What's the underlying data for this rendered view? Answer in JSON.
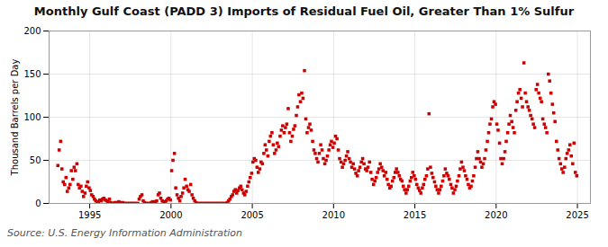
{
  "chart_data": {
    "type": "scatter",
    "title": "Monthly Gulf Coast (PADD 3) Imports of Residual Fuel Oil, Greater Than 1% Sulfur",
    "ylabel": "Thousand Barrels per Day",
    "source": "Source: U.S. Energy Information Administration",
    "color": "#cc0000",
    "marker": "square",
    "grid": true,
    "xlim": [
      1992.5,
      2025.8
    ],
    "ylim": [
      0,
      200
    ],
    "xticks": [
      1995,
      2000,
      2005,
      2010,
      2015,
      2020,
      2025
    ],
    "yticks": [
      0,
      50,
      100,
      150,
      200
    ],
    "x": [
      1993.04,
      1993.12,
      1993.21,
      1993.29,
      1993.37,
      1993.46,
      1993.54,
      1993.62,
      1993.71,
      1993.79,
      1993.87,
      1993.96,
      1994.04,
      1994.12,
      1994.21,
      1994.29,
      1994.37,
      1994.46,
      1994.54,
      1994.62,
      1994.71,
      1994.79,
      1994.87,
      1994.96,
      1995.04,
      1995.12,
      1995.21,
      1995.29,
      1995.37,
      1995.46,
      1995.54,
      1995.62,
      1995.71,
      1995.79,
      1995.87,
      1995.96,
      1996.04,
      1996.12,
      1996.21,
      1996.29,
      1996.37,
      1996.46,
      1996.54,
      1996.62,
      1996.71,
      1996.79,
      1996.87,
      1996.96,
      1997.04,
      1997.12,
      1997.21,
      1997.29,
      1997.37,
      1997.46,
      1997.54,
      1997.62,
      1997.71,
      1997.79,
      1997.87,
      1997.96,
      1998.04,
      1998.12,
      1998.21,
      1998.29,
      1998.37,
      1998.46,
      1998.54,
      1998.62,
      1998.71,
      1998.79,
      1998.87,
      1998.96,
      1999.04,
      1999.12,
      1999.21,
      1999.29,
      1999.37,
      1999.46,
      1999.54,
      1999.62,
      1999.71,
      1999.79,
      1999.87,
      1999.96,
      2000.04,
      2000.12,
      2000.21,
      2000.29,
      2000.37,
      2000.46,
      2000.54,
      2000.62,
      2000.71,
      2000.79,
      2000.87,
      2000.96,
      2001.04,
      2001.12,
      2001.21,
      2001.29,
      2001.37,
      2001.46,
      2001.54,
      2001.62,
      2001.71,
      2001.79,
      2001.87,
      2001.96,
      2002.04,
      2002.12,
      2002.21,
      2002.29,
      2002.37,
      2002.46,
      2002.54,
      2002.62,
      2002.71,
      2002.79,
      2002.87,
      2002.96,
      2003.04,
      2003.12,
      2003.21,
      2003.29,
      2003.37,
      2003.46,
      2003.54,
      2003.62,
      2003.71,
      2003.79,
      2003.87,
      2003.96,
      2004.04,
      2004.12,
      2004.21,
      2004.29,
      2004.37,
      2004.46,
      2004.54,
      2004.62,
      2004.71,
      2004.79,
      2004.87,
      2004.96,
      2005.04,
      2005.12,
      2005.21,
      2005.29,
      2005.37,
      2005.46,
      2005.54,
      2005.62,
      2005.71,
      2005.79,
      2005.87,
      2005.96,
      2006.04,
      2006.12,
      2006.21,
      2006.29,
      2006.37,
      2006.46,
      2006.54,
      2006.62,
      2006.71,
      2006.79,
      2006.87,
      2006.96,
      2007.04,
      2007.12,
      2007.21,
      2007.29,
      2007.37,
      2007.46,
      2007.54,
      2007.62,
      2007.71,
      2007.79,
      2007.87,
      2007.96,
      2008.04,
      2008.12,
      2008.21,
      2008.29,
      2008.37,
      2008.46,
      2008.54,
      2008.62,
      2008.71,
      2008.79,
      2008.87,
      2008.96,
      2009.04,
      2009.12,
      2009.21,
      2009.29,
      2009.37,
      2009.46,
      2009.54,
      2009.62,
      2009.71,
      2009.79,
      2009.87,
      2009.96,
      2010.04,
      2010.12,
      2010.21,
      2010.29,
      2010.37,
      2010.46,
      2010.54,
      2010.62,
      2010.71,
      2010.79,
      2010.87,
      2010.96,
      2011.04,
      2011.12,
      2011.21,
      2011.29,
      2011.37,
      2011.46,
      2011.54,
      2011.62,
      2011.71,
      2011.79,
      2011.87,
      2011.96,
      2012.04,
      2012.12,
      2012.21,
      2012.29,
      2012.37,
      2012.46,
      2012.54,
      2012.62,
      2012.71,
      2012.79,
      2012.87,
      2012.96,
      2013.04,
      2013.12,
      2013.21,
      2013.29,
      2013.37,
      2013.46,
      2013.54,
      2013.62,
      2013.71,
      2013.79,
      2013.87,
      2013.96,
      2014.04,
      2014.12,
      2014.21,
      2014.29,
      2014.37,
      2014.46,
      2014.54,
      2014.62,
      2014.71,
      2014.79,
      2014.87,
      2014.96,
      2015.04,
      2015.12,
      2015.21,
      2015.29,
      2015.37,
      2015.46,
      2015.54,
      2015.62,
      2015.71,
      2015.79,
      2015.87,
      2015.96,
      2016.04,
      2016.12,
      2016.21,
      2016.29,
      2016.37,
      2016.46,
      2016.54,
      2016.62,
      2016.71,
      2016.79,
      2016.87,
      2016.96,
      2017.04,
      2017.12,
      2017.21,
      2017.29,
      2017.37,
      2017.46,
      2017.54,
      2017.62,
      2017.71,
      2017.79,
      2017.87,
      2017.96,
      2018.04,
      2018.12,
      2018.21,
      2018.29,
      2018.37,
      2018.46,
      2018.54,
      2018.62,
      2018.71,
      2018.79,
      2018.87,
      2018.96,
      2019.04,
      2019.12,
      2019.21,
      2019.29,
      2019.37,
      2019.46,
      2019.54,
      2019.62,
      2019.71,
      2019.79,
      2019.87,
      2019.96,
      2020.04,
      2020.12,
      2020.21,
      2020.29,
      2020.37,
      2020.46,
      2020.54,
      2020.62,
      2020.71,
      2020.79,
      2020.87,
      2020.96,
      2021.04,
      2021.12,
      2021.21,
      2021.29,
      2021.37,
      2021.46,
      2021.54,
      2021.62,
      2021.71,
      2021.79,
      2021.87,
      2021.96,
      2022.04,
      2022.12,
      2022.21,
      2022.29,
      2022.37,
      2022.46,
      2022.54,
      2022.62,
      2022.71,
      2022.79,
      2022.87,
      2022.96,
      2023.04,
      2023.12,
      2023.21,
      2023.29,
      2023.37,
      2023.46,
      2023.54,
      2023.62,
      2023.71,
      2023.79,
      2023.87,
      2023.96,
      2024.04,
      2024.12,
      2024.21,
      2024.29,
      2024.37,
      2024.46,
      2024.54,
      2024.62,
      2024.71,
      2024.79,
      2024.87,
      2024.96
    ],
    "values": [
      44,
      62,
      72,
      40,
      25,
      22,
      30,
      14,
      18,
      22,
      38,
      28,
      42,
      38,
      46,
      22,
      18,
      20,
      14,
      8,
      12,
      20,
      25,
      18,
      15,
      10,
      8,
      5,
      3,
      1,
      2,
      4,
      3,
      5,
      6,
      4,
      3,
      2,
      5,
      1,
      0,
      0,
      1,
      0,
      1,
      2,
      1,
      0,
      1,
      0,
      0,
      0,
      0,
      0,
      0,
      0,
      0,
      0,
      0,
      0,
      5,
      8,
      10,
      3,
      1,
      0,
      0,
      0,
      0,
      1,
      2,
      1,
      2,
      3,
      10,
      12,
      6,
      3,
      2,
      1,
      3,
      5,
      6,
      4,
      38,
      50,
      58,
      18,
      10,
      6,
      3,
      8,
      12,
      18,
      28,
      20,
      16,
      14,
      22,
      10,
      6,
      3,
      1,
      0,
      0,
      0,
      0,
      0,
      0,
      0,
      0,
      0,
      0,
      0,
      0,
      0,
      0,
      0,
      0,
      0,
      0,
      0,
      0,
      0,
      0,
      1,
      3,
      5,
      8,
      10,
      14,
      16,
      12,
      15,
      18,
      20,
      16,
      12,
      10,
      14,
      20,
      25,
      30,
      35,
      48,
      52,
      50,
      42,
      36,
      40,
      48,
      46,
      58,
      68,
      62,
      55,
      72,
      78,
      82,
      68,
      58,
      62,
      70,
      66,
      78,
      85,
      90,
      82,
      88,
      92,
      110,
      82,
      72,
      78,
      86,
      90,
      102,
      112,
      126,
      118,
      128,
      122,
      154,
      98,
      82,
      88,
      92,
      85,
      72,
      62,
      58,
      52,
      48,
      58,
      68,
      62,
      52,
      46,
      50,
      55,
      62,
      68,
      72,
      65,
      70,
      78,
      75,
      62,
      52,
      48,
      42,
      46,
      50,
      55,
      60,
      52,
      48,
      42,
      46,
      40,
      35,
      32,
      38,
      42,
      48,
      52,
      46,
      40,
      38,
      42,
      48,
      36,
      28,
      22,
      26,
      30,
      36,
      40,
      46,
      42,
      38,
      32,
      36,
      28,
      22,
      18,
      20,
      26,
      30,
      36,
      40,
      36,
      32,
      28,
      26,
      20,
      16,
      12,
      16,
      20,
      26,
      30,
      36,
      32,
      28,
      22,
      18,
      15,
      12,
      18,
      22,
      28,
      32,
      40,
      104,
      42,
      35,
      30,
      25,
      20,
      16,
      12,
      16,
      20,
      26,
      32,
      40,
      35,
      32,
      28,
      22,
      18,
      12,
      16,
      20,
      26,
      32,
      40,
      48,
      42,
      38,
      32,
      28,
      22,
      18,
      20,
      26,
      32,
      42,
      52,
      60,
      52,
      48,
      42,
      46,
      52,
      62,
      72,
      82,
      92,
      98,
      112,
      118,
      115,
      92,
      85,
      70,
      52,
      46,
      52,
      60,
      72,
      82,
      92,
      102,
      95,
      88,
      82,
      108,
      118,
      128,
      132,
      122,
      112,
      163,
      128,
      118,
      112,
      108,
      102,
      98,
      92,
      88,
      132,
      138,
      128,
      122,
      118,
      98,
      92,
      88,
      82,
      150,
      142,
      128,
      115,
      105,
      95,
      72,
      62,
      52,
      46,
      40,
      36,
      42,
      52,
      58,
      62,
      68,
      55,
      46,
      70,
      36,
      32
    ]
  }
}
